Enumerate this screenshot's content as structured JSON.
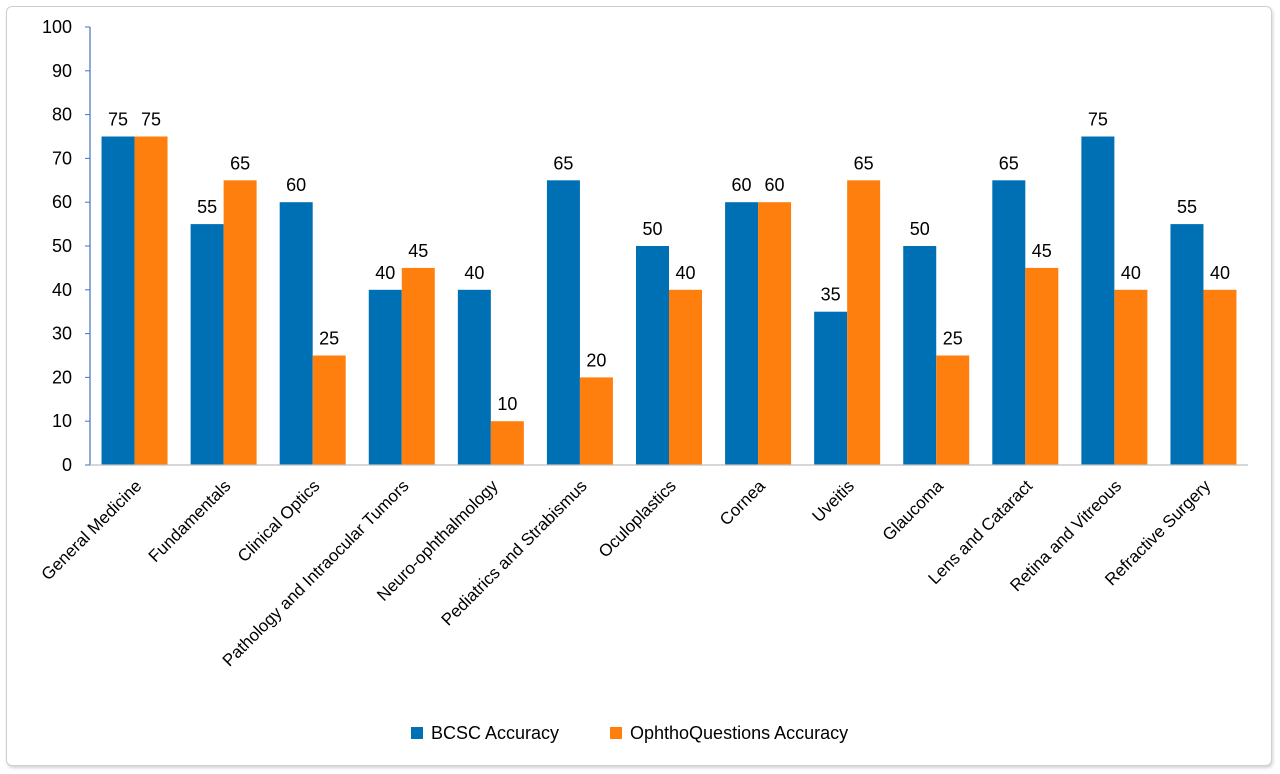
{
  "chart_data": {
    "type": "bar",
    "title": "",
    "xlabel": "",
    "ylabel": "",
    "ylim": [
      0,
      100
    ],
    "yticks": [
      0,
      10,
      20,
      30,
      40,
      50,
      60,
      70,
      80,
      90,
      100
    ],
    "grid": false,
    "legend_position": "bottom",
    "categories": [
      "General Medicine",
      "Fundamentals",
      "Clinical Optics",
      "Pathology and Intraocular Tumors",
      "Neuro-ophthalmology",
      "Pediatrics and Strabismus",
      "Oculoplastics",
      "Cornea",
      "Uveitis",
      "Glaucoma",
      "Lens and Cataract",
      "Retina and Vitreous",
      "Refractive Surgery"
    ],
    "series": [
      {
        "name": "BCSC Accuracy",
        "color": "#0070b4",
        "values": [
          75,
          55,
          60,
          40,
          40,
          65,
          50,
          60,
          35,
          50,
          65,
          75,
          55
        ]
      },
      {
        "name": "OphthoQuestions Accuracy",
        "color": "#ff7f0e",
        "values": [
          75,
          65,
          25,
          45,
          10,
          20,
          40,
          60,
          65,
          25,
          45,
          40,
          40
        ]
      }
    ],
    "axis_color": "#4472c4"
  }
}
